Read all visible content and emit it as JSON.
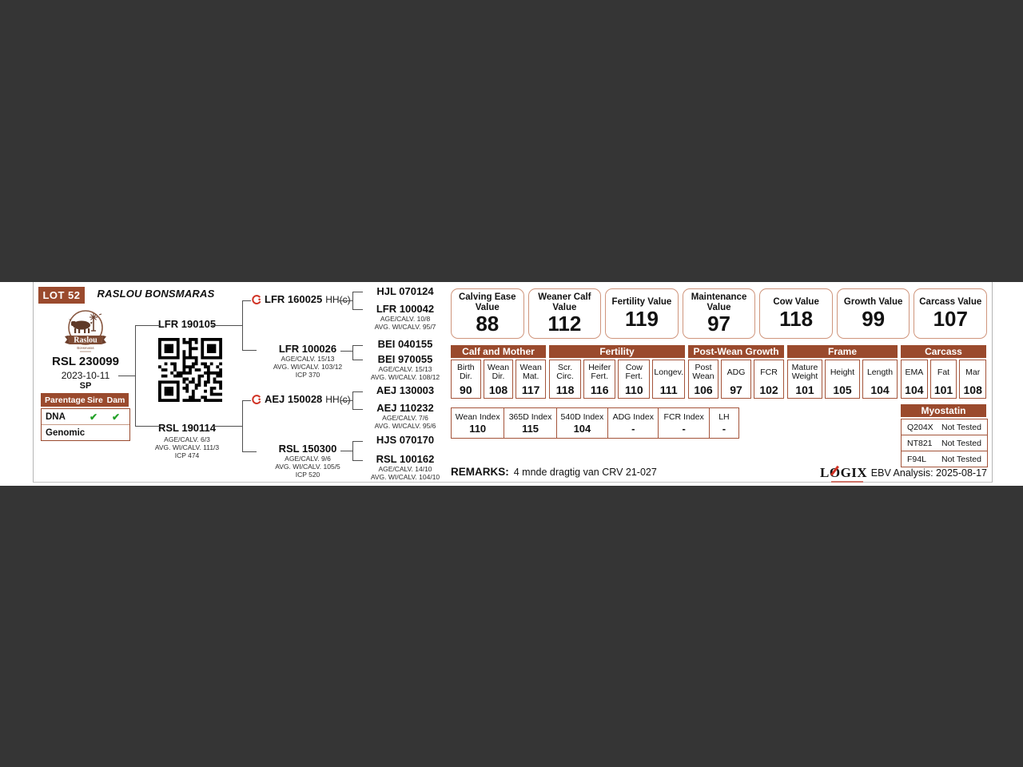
{
  "lot": {
    "badge": "LOT 52"
  },
  "farm": {
    "title": "RASLOU BONSMARAS",
    "logo_name": "Raslou",
    "logo_sub": "Bonsmaras"
  },
  "animal": {
    "id": "RSL 230099",
    "birth_date": "2023-10-11",
    "code": "SP"
  },
  "parentage": {
    "header_label": "Parentage",
    "header_sire": "Sire",
    "header_dam": "Dam",
    "rows": [
      {
        "label": "DNA",
        "sire": "✔",
        "dam": "✔"
      },
      {
        "label": "Genomic",
        "sire": "",
        "dam": ""
      }
    ]
  },
  "pedigree": {
    "sire": {
      "id": "LFR 190105"
    },
    "dam": {
      "id": "RSL 190114",
      "line1": "AGE/CALV. 6/3",
      "line2": "AVG. WI/CALV. 111/3",
      "line3": "ICP 474"
    },
    "gen2": [
      {
        "id": "LFR 160025",
        "suffix": "HH(c)"
      },
      {
        "id": "LFR 100026",
        "line1": "AGE/CALV. 15/13",
        "line2": "AVG. WI/CALV. 103/12",
        "line3": "ICP 370"
      },
      {
        "id": "AEJ 150028",
        "suffix": "HH(c)"
      },
      {
        "id": "RSL 150300",
        "line1": "AGE/CALV. 9/6",
        "line2": "AVG. WI/CALV. 105/5",
        "line3": "ICP 520"
      }
    ],
    "gen3": [
      {
        "id": "HJL 070124"
      },
      {
        "id": "LFR 100042",
        "line1": "AGE/CALV. 10/8",
        "line2": "AVG. WI/CALV. 95/7"
      },
      {
        "id": "BEI 040155"
      },
      {
        "id": "BEI 970055",
        "line1": "AGE/CALV. 15/13",
        "line2": "AVG. WI/CALV. 108/12"
      },
      {
        "id": "AEJ 130003"
      },
      {
        "id": "AEJ 110232",
        "line1": "AGE/CALV. 7/6",
        "line2": "AVG. WI/CALV. 95/6"
      },
      {
        "id": "HJS 070170"
      },
      {
        "id": "RSL 100162",
        "line1": "AGE/CALV. 14/10",
        "line2": "AVG. WI/CALV. 104/10"
      }
    ]
  },
  "value_boxes": [
    {
      "label": "Calving Ease Value",
      "value": "88"
    },
    {
      "label": "Weaner Calf Value",
      "value": "112"
    },
    {
      "label": "Fertility Value",
      "value": "119"
    },
    {
      "label": "Maintenance Value",
      "value": "97"
    },
    {
      "label": "Cow Value",
      "value": "118"
    },
    {
      "label": "Growth Value",
      "value": "99"
    },
    {
      "label": "Carcass Value",
      "value": "107"
    }
  ],
  "ebv_table": {
    "groups": [
      {
        "title": "Calf and Mother",
        "cols": [
          {
            "label": "Birth Dir.",
            "value": "90"
          },
          {
            "label": "Wean Dir.",
            "value": "108"
          },
          {
            "label": "Wean Mat.",
            "value": "117"
          }
        ]
      },
      {
        "title": "Fertility",
        "cols": [
          {
            "label": "Scr. Circ.",
            "value": "118"
          },
          {
            "label": "Heifer Fert.",
            "value": "116"
          },
          {
            "label": "Cow Fert.",
            "value": "110"
          },
          {
            "label": "Longev.",
            "value": "111"
          }
        ]
      },
      {
        "title": "Post-Wean Growth",
        "cols": [
          {
            "label": "Post Wean",
            "value": "106"
          },
          {
            "label": "ADG",
            "value": "97"
          },
          {
            "label": "FCR",
            "value": "102"
          }
        ]
      },
      {
        "title": "Frame",
        "cols": [
          {
            "label": "Mature Weight",
            "value": "101"
          },
          {
            "label": "Height",
            "value": "105"
          },
          {
            "label": "Length",
            "value": "104"
          }
        ]
      },
      {
        "title": "Carcass",
        "cols": [
          {
            "label": "EMA",
            "value": "104"
          },
          {
            "label": "Fat",
            "value": "101"
          },
          {
            "label": "Mar",
            "value": "108"
          }
        ]
      }
    ]
  },
  "index_table": {
    "cols": [
      {
        "label": "Wean Index",
        "value": "110"
      },
      {
        "label": "365D Index",
        "value": "115"
      },
      {
        "label": "540D Index",
        "value": "104"
      },
      {
        "label": "ADG Index",
        "value": "-"
      },
      {
        "label": "FCR Index",
        "value": "-"
      },
      {
        "label": "LH",
        "value": "-"
      }
    ]
  },
  "myostatin": {
    "title": "Myostatin",
    "rows": [
      {
        "gene": "Q204X",
        "result": "Not Tested"
      },
      {
        "gene": "NT821",
        "result": "Not Tested"
      },
      {
        "gene": "F94L",
        "result": "Not Tested"
      }
    ]
  },
  "remarks": {
    "label": "REMARKS:",
    "text": "4 mnde dragtig van CRV 21-027"
  },
  "footer": {
    "logix": "LOGIX",
    "analysis": "EBV Analysis: 2025-08-17"
  },
  "colors": {
    "brown": "#9a4a2d",
    "box_border": "#cf957c",
    "check_green": "#23a127",
    "accent_red": "#d03224"
  }
}
